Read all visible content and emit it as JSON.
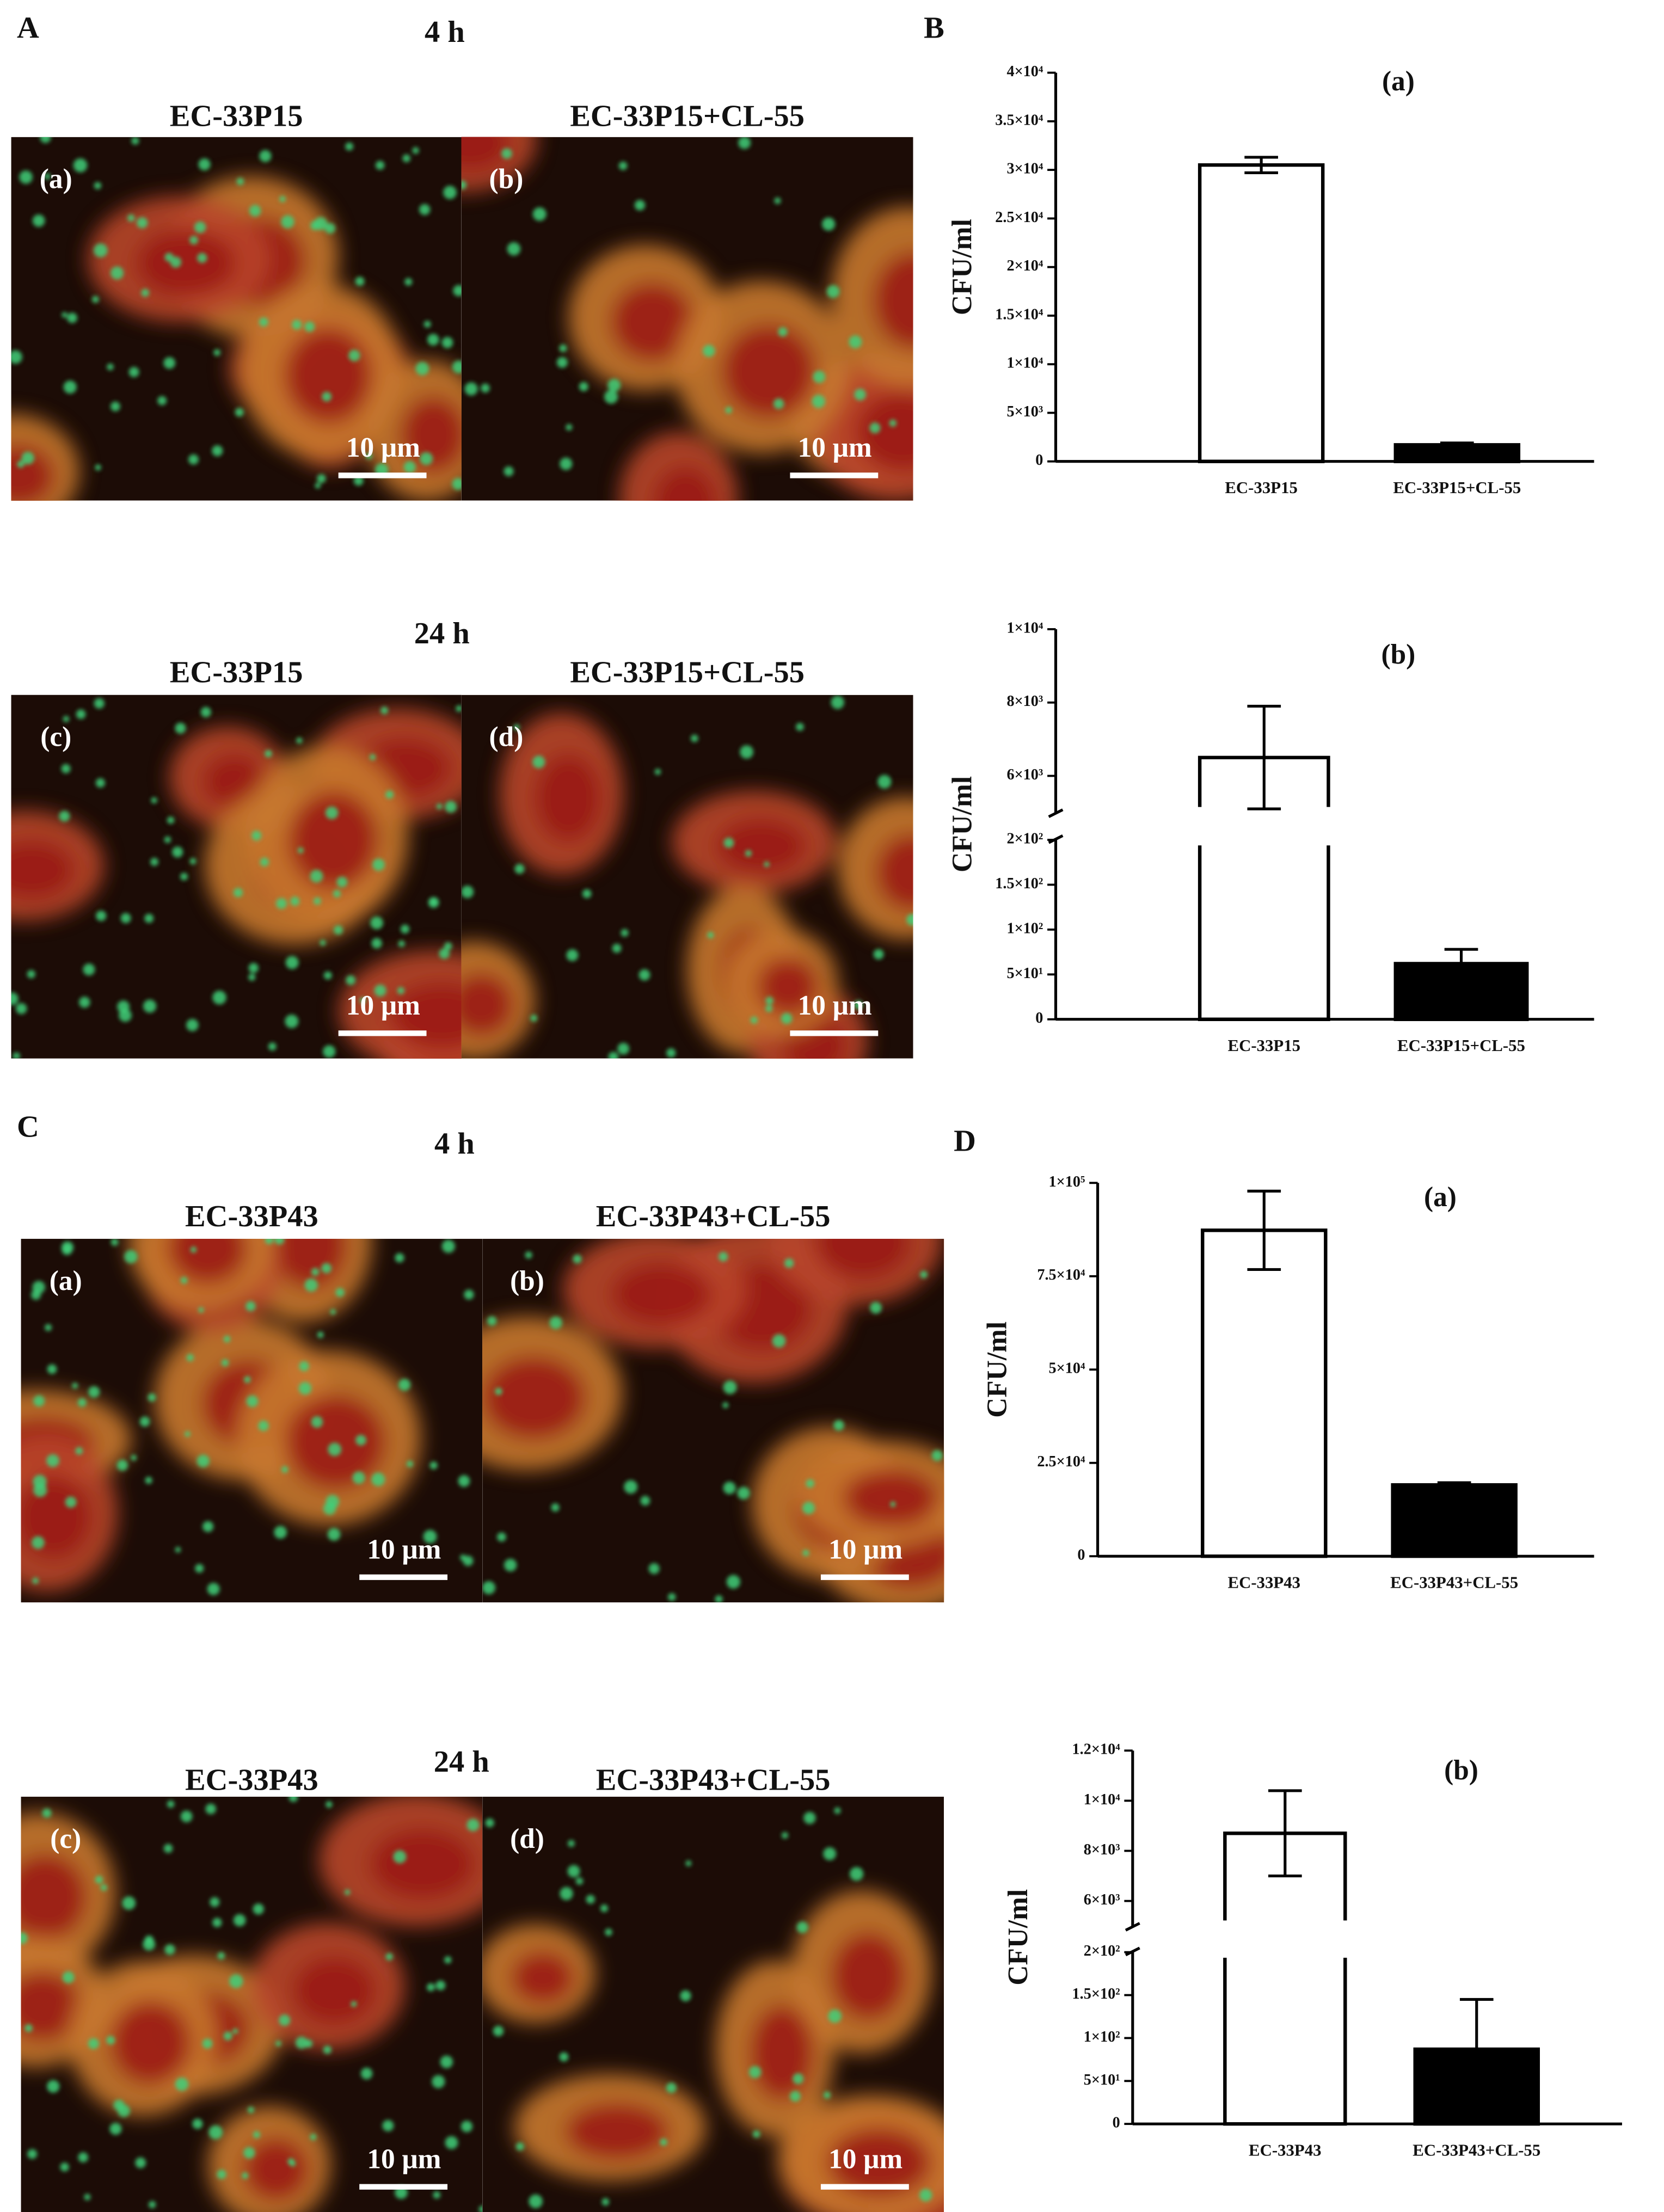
{
  "image_panels": [
    {
      "letter": "A",
      "groups": [
        {
          "time": "4 h",
          "images": [
            {
              "title": "EC-33P15",
              "tag": "(a)",
              "scale_bar": "10 μm"
            },
            {
              "title": "EC-33P15+CL-55",
              "tag": "(b)",
              "scale_bar": "10 μm"
            }
          ]
        },
        {
          "time": "24 h",
          "images": [
            {
              "title": "EC-33P15",
              "tag": "(c)",
              "scale_bar": "10 μm"
            },
            {
              "title": "EC-33P15+CL-55",
              "tag": "(d)",
              "scale_bar": "10 μm"
            }
          ]
        }
      ]
    },
    {
      "letter": "C",
      "groups": [
        {
          "time": "4 h",
          "images": [
            {
              "title": "EC-33P43",
              "tag": "(a)",
              "scale_bar": "10 μm"
            },
            {
              "title": "EC-33P43+CL-55",
              "tag": "(b)",
              "scale_bar": "10 μm"
            }
          ]
        },
        {
          "time": "24 h",
          "images": [
            {
              "title": "EC-33P43",
              "tag": "(c)",
              "scale_bar": "10 μm"
            },
            {
              "title": "EC-33P43+CL-55",
              "tag": "(d)",
              "scale_bar": "10 μm"
            }
          ]
        }
      ]
    }
  ],
  "chart_data": [
    {
      "type": "bar",
      "panel_letter": "B",
      "title": "(a)",
      "y_label": "CFU/ml",
      "categories": [
        "EC-33P15",
        "EC-33P15+CL-55"
      ],
      "values": [
        30500,
        1700
      ],
      "errors": [
        800,
        200
      ],
      "colors": [
        "#ffffff",
        "#000000"
      ],
      "ylim": [
        0,
        40000
      ],
      "yticks": [
        0,
        {
          "value": 5000,
          "label": "5×10³"
        },
        {
          "value": 10000,
          "label": "1×10⁴"
        },
        {
          "value": 15000,
          "label": "1.5×10⁴"
        },
        {
          "value": 20000,
          "label": "2×10⁴"
        },
        {
          "value": 25000,
          "label": "2.5×10⁴"
        },
        {
          "value": 30000,
          "label": "3×10⁴"
        },
        {
          "value": 35000,
          "label": "3.5×10⁴"
        },
        {
          "value": 40000,
          "label": "4×10⁴"
        }
      ]
    },
    {
      "type": "bar",
      "title": "(b)",
      "y_label": "CFU/ml",
      "categories": [
        "EC-33P15",
        "EC-33P15+CL-55"
      ],
      "values": [
        6500,
        62
      ],
      "errors": [
        1400,
        16
      ],
      "colors": [
        "#ffffff",
        "#000000"
      ],
      "ylim": [
        0,
        10000
      ],
      "ybreak": [
        200,
        5000
      ],
      "yticks": [
        0,
        {
          "value": 50,
          "label": "5×10¹"
        },
        {
          "value": 100,
          "label": "1×10²"
        },
        {
          "value": 150,
          "label": "1.5×10²"
        },
        {
          "value": 200,
          "label": "2×10²"
        },
        {
          "value": 6000,
          "label": "6×10³"
        },
        {
          "value": 8000,
          "label": "8×10³"
        },
        {
          "value": 10000,
          "label": "1×10⁴"
        }
      ]
    },
    {
      "type": "bar",
      "panel_letter": "D",
      "title": "(a)",
      "y_label": "CFU/ml",
      "categories": [
        "EC-33P43",
        "EC-33P43+CL-55"
      ],
      "values": [
        87300,
        19100
      ],
      "errors": [
        10500,
        600
      ],
      "colors": [
        "#ffffff",
        "#000000"
      ],
      "ylim": [
        0,
        100000
      ],
      "yticks": [
        0,
        {
          "value": 25000,
          "label": "2.5×10⁴"
        },
        {
          "value": 50000,
          "label": "5×10⁴"
        },
        {
          "value": 75000,
          "label": "7.5×10⁴"
        },
        {
          "value": 100000,
          "label": "1×10⁵"
        }
      ]
    },
    {
      "type": "bar",
      "title": "(b)",
      "y_label": "CFU/ml",
      "categories": [
        "EC-33P43",
        "EC-33P43+CL-55"
      ],
      "values": [
        8700,
        87
      ],
      "errors": [
        1700,
        58
      ],
      "colors": [
        "#ffffff",
        "#000000"
      ],
      "ylim": [
        0,
        12000
      ],
      "ybreak": [
        200,
        5000
      ],
      "yticks": [
        0,
        {
          "value": 50,
          "label": "5×10¹"
        },
        {
          "value": 100,
          "label": "1×10²"
        },
        {
          "value": 150,
          "label": "1.5×10²"
        },
        {
          "value": 200,
          "label": "2×10²"
        },
        {
          "value": 6000,
          "label": "6×10³"
        },
        {
          "value": 8000,
          "label": "8×10³"
        },
        {
          "value": 10000,
          "label": "1×10⁴"
        },
        {
          "value": 12000,
          "label": "1.2×10⁴"
        }
      ]
    }
  ]
}
